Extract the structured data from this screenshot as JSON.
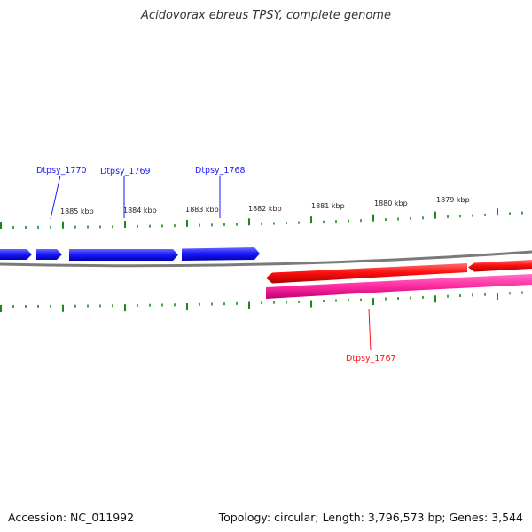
{
  "title": "Acidovorax ebreus TPSY, complete genome",
  "accession": "Accession: NC_011992",
  "summary": "Topology: circular; Length: 3,796,573 bp; Genes: 3,544",
  "colors": {
    "forward_gene": "#1a1aff",
    "reverse_gene": "#ff1010",
    "reverse_rna": "#ff2aa0",
    "backbone": "#7a7a7a",
    "ticks": "#1a8a1a"
  },
  "scale_labels": [
    "1885 kbp",
    "1884 kbp",
    "1883 kbp",
    "1882 kbp",
    "1881 kbp",
    "1880 kbp",
    "1879 kbp"
  ],
  "gene_labels": {
    "forward": [
      "Dtpsy_1770",
      "Dtpsy_1769",
      "Dtpsy_1768"
    ],
    "reverse": [
      "Dtpsy_1767"
    ]
  }
}
